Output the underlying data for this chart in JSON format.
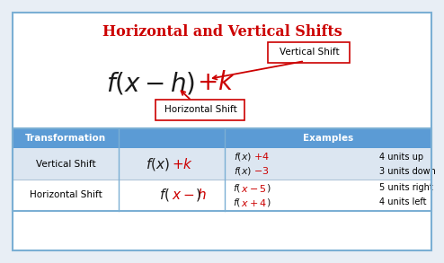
{
  "title": "Horizontal and Vertical Shifts",
  "title_color": "#cc0000",
  "title_fontsize": 11.5,
  "bg_color": "#e8eef5",
  "vertical_shift_label": "Vertical Shift",
  "horizontal_shift_label": "Horizontal Shift",
  "table_header_bg": "#5b9bd5",
  "table_header_color": "#ffffff",
  "table_row1_bg": "#dce6f1",
  "table_row2_bg": "#ffffff",
  "col1_header": "Transformation",
  "col2_header": "Examples",
  "row1_name": "Vertical Shift",
  "row1_ex1_desc": "4 units up",
  "row1_ex2_desc": "3 units down",
  "row2_name": "Horizontal Shift",
  "row2_ex1_desc": "5 units right",
  "row2_ex2_desc": "4 units left",
  "label_box_edge": "#cc0000",
  "arrow_color": "#cc0000",
  "red_color": "#cc0000",
  "black_color": "#1a1a1a",
  "table_border": "#7bafd4"
}
